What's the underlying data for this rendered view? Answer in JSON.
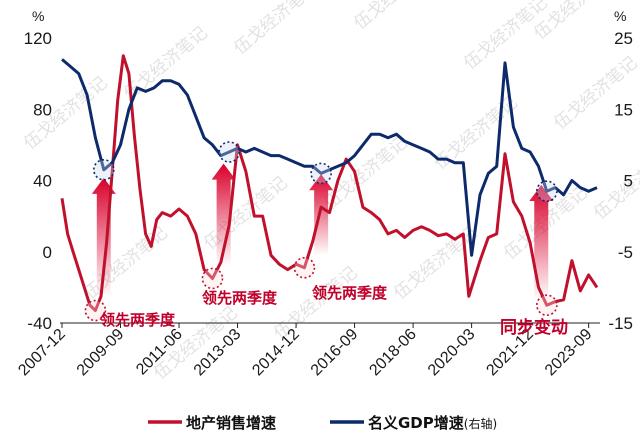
{
  "chart_data": {
    "type": "line",
    "left_unit": "%",
    "right_unit": "%",
    "y_left_ticks": [
      "120",
      "80",
      "40",
      "0",
      "-40"
    ],
    "y_right_ticks": [
      "25",
      "15",
      "5",
      "-5",
      "-15"
    ],
    "ylim_left": [
      -40,
      120
    ],
    "ylim_right": [
      -15,
      25
    ],
    "x_ticks": [
      "2007-12",
      "2009-09",
      "2011-06",
      "2013-03",
      "2014-12",
      "2016-09",
      "2018-06",
      "2020-03",
      "2021-12",
      "2023-09"
    ],
    "legend": {
      "series1": "地产销售增速",
      "series2": "名义GDP增速",
      "series2_suffix": "(右轴)"
    },
    "annotations": [
      {
        "text": "领先两季度",
        "x": "2009-02",
        "y": -33
      },
      {
        "text": "领先两季度",
        "x": "2012-09",
        "y": -15
      },
      {
        "text": "领先两季度",
        "x": "2015-06",
        "y": -10
      },
      {
        "text": "同步变动",
        "x": "2022-03",
        "y": -33
      }
    ],
    "watermark": "伍戈经济笔记",
    "series": [
      {
        "name": "地产销售增速",
        "color": "#c0102c",
        "axis": "left",
        "points": [
          [
            "2007-12",
            30
          ],
          [
            "2008-02",
            10
          ],
          [
            "2008-04",
            0
          ],
          [
            "2008-06",
            -10
          ],
          [
            "2008-08",
            -20
          ],
          [
            "2008-10",
            -30
          ],
          [
            "2008-12",
            -33
          ],
          [
            "2009-02",
            -25
          ],
          [
            "2009-04",
            5
          ],
          [
            "2009-06",
            45
          ],
          [
            "2009-08",
            85
          ],
          [
            "2009-10",
            110
          ],
          [
            "2009-12",
            100
          ],
          [
            "2010-02",
            65
          ],
          [
            "2010-04",
            35
          ],
          [
            "2010-06",
            10
          ],
          [
            "2010-08",
            3
          ],
          [
            "2010-10",
            18
          ],
          [
            "2010-12",
            22
          ],
          [
            "2011-03",
            20
          ],
          [
            "2011-06",
            24
          ],
          [
            "2011-09",
            20
          ],
          [
            "2011-12",
            10
          ],
          [
            "2012-03",
            -10
          ],
          [
            "2012-06",
            -15
          ],
          [
            "2012-09",
            -6
          ],
          [
            "2012-12",
            15
          ],
          [
            "2013-03",
            60
          ],
          [
            "2013-06",
            45
          ],
          [
            "2013-09",
            20
          ],
          [
            "2013-12",
            20
          ],
          [
            "2014-03",
            -2
          ],
          [
            "2014-06",
            -7
          ],
          [
            "2014-09",
            -10
          ],
          [
            "2014-12",
            -7
          ],
          [
            "2015-03",
            -9
          ],
          [
            "2015-06",
            6
          ],
          [
            "2015-09",
            25
          ],
          [
            "2015-12",
            22
          ],
          [
            "2016-03",
            40
          ],
          [
            "2016-06",
            52
          ],
          [
            "2016-09",
            45
          ],
          [
            "2016-12",
            25
          ],
          [
            "2017-03",
            22
          ],
          [
            "2017-06",
            18
          ],
          [
            "2017-09",
            10
          ],
          [
            "2017-12",
            12
          ],
          [
            "2018-03",
            8
          ],
          [
            "2018-06",
            12
          ],
          [
            "2018-09",
            14
          ],
          [
            "2018-12",
            12
          ],
          [
            "2019-03",
            9
          ],
          [
            "2019-06",
            10
          ],
          [
            "2019-09",
            7
          ],
          [
            "2019-12",
            10
          ],
          [
            "2020-02",
            -25
          ],
          [
            "2020-04",
            -15
          ],
          [
            "2020-06",
            -5
          ],
          [
            "2020-09",
            8
          ],
          [
            "2020-12",
            10
          ],
          [
            "2021-03",
            55
          ],
          [
            "2021-06",
            28
          ],
          [
            "2021-09",
            20
          ],
          [
            "2021-12",
            5
          ],
          [
            "2022-03",
            -20
          ],
          [
            "2022-06",
            -30
          ],
          [
            "2022-09",
            -28
          ],
          [
            "2022-12",
            -27
          ],
          [
            "2023-03",
            -5
          ],
          [
            "2023-06",
            -22
          ],
          [
            "2023-09",
            -13
          ],
          [
            "2023-12",
            -20
          ]
        ]
      },
      {
        "name": "名义GDP增速",
        "color": "#0d2a6b",
        "axis": "right",
        "points": [
          [
            "2007-12",
            22
          ],
          [
            "2008-03",
            21
          ],
          [
            "2008-06",
            20
          ],
          [
            "2008-09",
            17
          ],
          [
            "2008-12",
            11
          ],
          [
            "2009-03",
            6.5
          ],
          [
            "2009-06",
            7.5
          ],
          [
            "2009-09",
            10
          ],
          [
            "2009-12",
            15
          ],
          [
            "2010-03",
            18
          ],
          [
            "2010-06",
            17.5
          ],
          [
            "2010-09",
            18
          ],
          [
            "2010-12",
            19
          ],
          [
            "2011-03",
            19
          ],
          [
            "2011-06",
            18.5
          ],
          [
            "2011-09",
            17
          ],
          [
            "2011-12",
            14
          ],
          [
            "2012-03",
            11
          ],
          [
            "2012-06",
            10
          ],
          [
            "2012-09",
            8.5
          ],
          [
            "2012-12",
            9
          ],
          [
            "2013-03",
            9.5
          ],
          [
            "2013-06",
            9
          ],
          [
            "2013-09",
            9.5
          ],
          [
            "2013-12",
            9
          ],
          [
            "2014-03",
            8.5
          ],
          [
            "2014-06",
            8.5
          ],
          [
            "2014-09",
            8
          ],
          [
            "2014-12",
            7.5
          ],
          [
            "2015-03",
            7
          ],
          [
            "2015-06",
            7
          ],
          [
            "2015-09",
            6
          ],
          [
            "2015-12",
            6.5
          ],
          [
            "2016-03",
            7
          ],
          [
            "2016-06",
            7.5
          ],
          [
            "2016-09",
            8.5
          ],
          [
            "2016-12",
            10
          ],
          [
            "2017-03",
            11.5
          ],
          [
            "2017-06",
            11.5
          ],
          [
            "2017-09",
            11
          ],
          [
            "2017-12",
            11.5
          ],
          [
            "2018-03",
            10.5
          ],
          [
            "2018-06",
            10
          ],
          [
            "2018-09",
            9.5
          ],
          [
            "2018-12",
            9
          ],
          [
            "2019-03",
            8
          ],
          [
            "2019-06",
            8
          ],
          [
            "2019-09",
            7.5
          ],
          [
            "2019-12",
            7.5
          ],
          [
            "2020-03",
            -5.5
          ],
          [
            "2020-06",
            3
          ],
          [
            "2020-09",
            6
          ],
          [
            "2020-12",
            7
          ],
          [
            "2021-03",
            21.5
          ],
          [
            "2021-06",
            12.5
          ],
          [
            "2021-09",
            9.5
          ],
          [
            "2021-12",
            9
          ],
          [
            "2022-03",
            7
          ],
          [
            "2022-06",
            3.5
          ],
          [
            "2022-09",
            4
          ],
          [
            "2022-12",
            3
          ],
          [
            "2023-03",
            5
          ],
          [
            "2023-06",
            4
          ],
          [
            "2023-09",
            3.5
          ],
          [
            "2023-12",
            4
          ]
        ]
      }
    ]
  }
}
